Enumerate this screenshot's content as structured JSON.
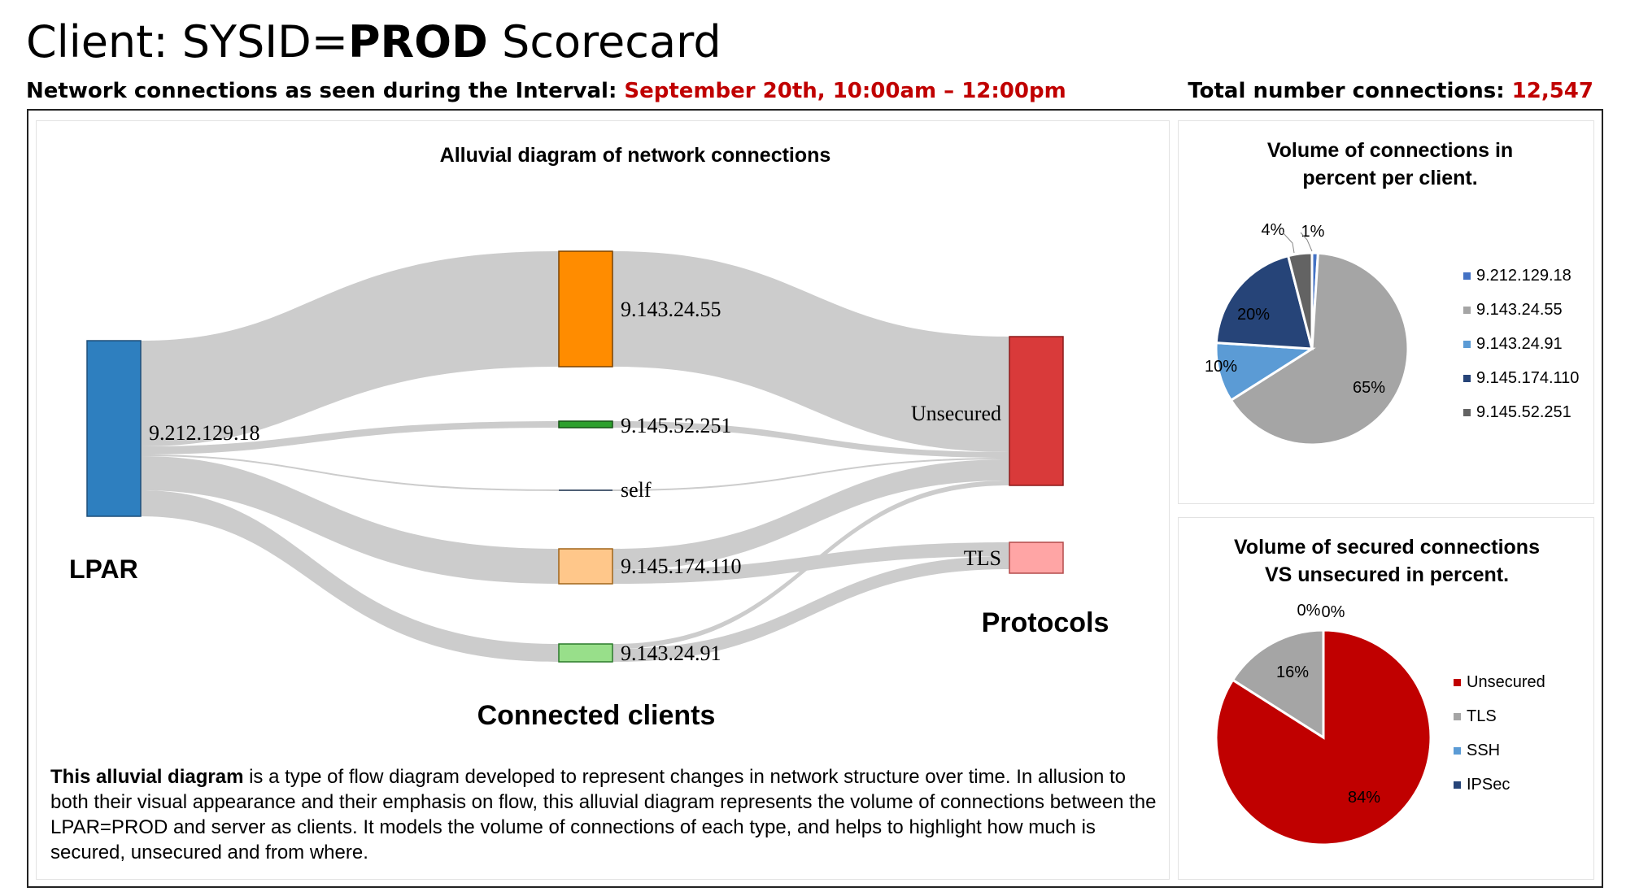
{
  "header": {
    "title_prefix": "Client: SYSID=",
    "title_bold": "PROD",
    "title_suffix": " Scorecard",
    "interval_label": "Network connections as seen during the Interval: ",
    "interval_value": "September 20th, 10:00am – 12:00pm",
    "total_label": "Total number connections: ",
    "total_value": "12,547"
  },
  "sankey": {
    "title": "Alluvial diagram of network connections",
    "column_labels": {
      "lpar": "LPAR",
      "clients": "Connected clients",
      "protocols": "Protocols"
    },
    "source": {
      "label": "9.212.129.18",
      "color": "#2e7fbf"
    },
    "clients": [
      {
        "label": "9.143.24.55",
        "color": "#ff8c00"
      },
      {
        "label": "9.145.52.251",
        "color": "#2ca02c"
      },
      {
        "label": "self",
        "color": "#4f5f75"
      },
      {
        "label": "9.145.174.110",
        "color": "#ffc78a"
      },
      {
        "label": "9.143.24.91",
        "color": "#98df8a"
      }
    ],
    "protocols": [
      {
        "label": "Unsecured",
        "color": "#d93a3a"
      },
      {
        "label": "TLS",
        "color": "#ffa5a5"
      }
    ],
    "flow_color": "#cccccc"
  },
  "description": {
    "bold": "This alluvial diagram",
    "text": " is a type of flow diagram developed to represent changes in network structure over time. In allusion to both their visual appearance and their emphasis on flow, this alluvial diagram represents the volume of connections between the LPAR=PROD and server as clients. It models the volume of connections of each type, and helps to highlight how much is secured, unsecured and from where."
  },
  "chart_data": [
    {
      "type": "pie",
      "title": "Volume of connections in percent per client.",
      "categories": [
        "9.212.129.18",
        "9.143.24.55",
        "9.143.24.91",
        "9.145.174.110",
        "9.145.52.251"
      ],
      "values": [
        1,
        65,
        10,
        20,
        4
      ],
      "data_labels": [
        "1%",
        "65%",
        "10%",
        "20%",
        "4%"
      ],
      "colors": [
        "#4472c4",
        "#a5a5a5",
        "#5b9bd5",
        "#264478",
        "#636363"
      ],
      "legend": "right"
    },
    {
      "type": "pie",
      "title": "Volume of secured connections VS unsecured in percent.",
      "categories": [
        "Unsecured",
        "TLS",
        "SSH",
        "IPSec"
      ],
      "values": [
        84,
        16,
        0,
        0
      ],
      "data_labels": [
        "84%",
        "16%",
        "0%",
        "0%"
      ],
      "colors": [
        "#c00000",
        "#a5a5a5",
        "#5b9bd5",
        "#264478"
      ],
      "legend": "right"
    }
  ]
}
